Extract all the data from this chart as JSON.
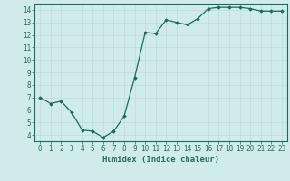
{
  "x": [
    0,
    1,
    2,
    3,
    4,
    5,
    6,
    7,
    8,
    9,
    10,
    11,
    12,
    13,
    14,
    15,
    16,
    17,
    18,
    19,
    20,
    21,
    22,
    23
  ],
  "y": [
    7.0,
    6.5,
    6.7,
    5.8,
    4.4,
    4.3,
    3.8,
    4.3,
    5.5,
    8.6,
    12.2,
    12.1,
    13.2,
    13.0,
    12.8,
    13.3,
    14.1,
    14.2,
    14.2,
    14.2,
    14.1,
    13.9,
    13.9,
    13.9
  ],
  "line_color": "#1a6b5a",
  "marker": "D",
  "marker_size": 1.8,
  "linewidth": 0.9,
  "xlabel": "Humidex (Indice chaleur)",
  "xlim": [
    -0.5,
    23.5
  ],
  "ylim": [
    3.5,
    14.5
  ],
  "yticks": [
    4,
    5,
    6,
    7,
    8,
    9,
    10,
    11,
    12,
    13,
    14
  ],
  "xticks": [
    0,
    1,
    2,
    3,
    4,
    5,
    6,
    7,
    8,
    9,
    10,
    11,
    12,
    13,
    14,
    15,
    16,
    17,
    18,
    19,
    20,
    21,
    22,
    23
  ],
  "background_color": "#cfecea",
  "grid_color": "#c0dbd9",
  "xlabel_fontsize": 6.5,
  "tick_fontsize": 5.5,
  "ylabel_color": "#2d6b5a"
}
